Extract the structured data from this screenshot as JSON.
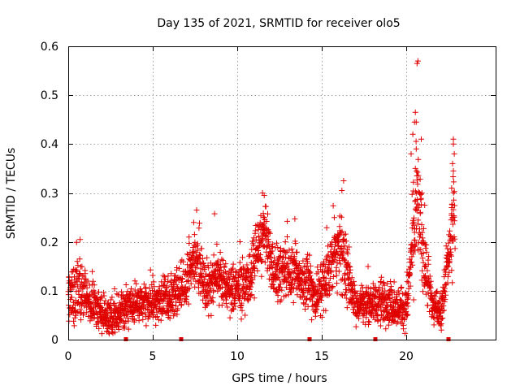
{
  "chart_data": {
    "type": "scatter",
    "title": "Day 135 of 2021, SRMTID for receiver olo5",
    "xlabel": "GPS time / hours",
    "ylabel": "SRMTID / TECUs",
    "xlim": [
      0,
      25.3
    ],
    "ylim": [
      0,
      0.6
    ],
    "xticks": [
      0,
      5,
      10,
      15,
      20
    ],
    "yticks": [
      0,
      0.1,
      0.2,
      0.3,
      0.4,
      0.5,
      0.6
    ],
    "xtick_labels": [
      "0",
      "5",
      "10",
      "15",
      "20"
    ],
    "ytick_labels": [
      "0",
      "0.1",
      "0.2",
      "0.3",
      "0.4",
      "0.5",
      "0.6"
    ],
    "grid": true,
    "marker": "plus",
    "color": "#e00000",
    "profile": [
      {
        "x": 0.0,
        "base": 0.085,
        "spread": 0.04
      },
      {
        "x": 0.6,
        "base": 0.11,
        "spread": 0.05
      },
      {
        "x": 1.2,
        "base": 0.08,
        "spread": 0.035
      },
      {
        "x": 2.0,
        "base": 0.05,
        "spread": 0.03
      },
      {
        "x": 2.5,
        "base": 0.045,
        "spread": 0.025
      },
      {
        "x": 3.2,
        "base": 0.065,
        "spread": 0.03
      },
      {
        "x": 4.0,
        "base": 0.07,
        "spread": 0.025
      },
      {
        "x": 5.0,
        "base": 0.075,
        "spread": 0.03
      },
      {
        "x": 6.0,
        "base": 0.085,
        "spread": 0.035
      },
      {
        "x": 6.8,
        "base": 0.11,
        "spread": 0.04
      },
      {
        "x": 7.6,
        "base": 0.18,
        "spread": 0.05
      },
      {
        "x": 8.2,
        "base": 0.1,
        "spread": 0.04
      },
      {
        "x": 8.8,
        "base": 0.14,
        "spread": 0.04
      },
      {
        "x": 9.5,
        "base": 0.1,
        "spread": 0.035
      },
      {
        "x": 10.5,
        "base": 0.11,
        "spread": 0.04
      },
      {
        "x": 11.0,
        "base": 0.15,
        "spread": 0.05
      },
      {
        "x": 11.6,
        "base": 0.22,
        "spread": 0.05
      },
      {
        "x": 12.2,
        "base": 0.13,
        "spread": 0.04
      },
      {
        "x": 13.0,
        "base": 0.14,
        "spread": 0.045
      },
      {
        "x": 13.6,
        "base": 0.13,
        "spread": 0.04
      },
      {
        "x": 14.2,
        "base": 0.12,
        "spread": 0.05
      },
      {
        "x": 14.6,
        "base": 0.08,
        "spread": 0.03
      },
      {
        "x": 15.2,
        "base": 0.12,
        "spread": 0.045
      },
      {
        "x": 15.8,
        "base": 0.18,
        "spread": 0.05
      },
      {
        "x": 16.3,
        "base": 0.17,
        "spread": 0.06
      },
      {
        "x": 17.0,
        "base": 0.07,
        "spread": 0.03
      },
      {
        "x": 18.0,
        "base": 0.075,
        "spread": 0.03
      },
      {
        "x": 18.8,
        "base": 0.08,
        "spread": 0.035
      },
      {
        "x": 19.4,
        "base": 0.065,
        "spread": 0.03
      },
      {
        "x": 20.0,
        "base": 0.06,
        "spread": 0.03
      },
      {
        "x": 20.4,
        "base": 0.2,
        "spread": 0.07
      },
      {
        "x": 20.7,
        "base": 0.28,
        "spread": 0.09
      },
      {
        "x": 21.1,
        "base": 0.15,
        "spread": 0.05
      },
      {
        "x": 21.6,
        "base": 0.065,
        "spread": 0.03
      },
      {
        "x": 22.1,
        "base": 0.06,
        "spread": 0.025
      },
      {
        "x": 22.5,
        "base": 0.17,
        "spread": 0.04
      },
      {
        "x": 22.8,
        "base": 0.25,
        "spread": 0.09
      }
    ],
    "outliers": [
      {
        "x": 0.7,
        "y": 0.205
      },
      {
        "x": 7.6,
        "y": 0.265
      },
      {
        "x": 11.5,
        "y": 0.3
      },
      {
        "x": 11.6,
        "y": 0.295
      },
      {
        "x": 16.3,
        "y": 0.325
      },
      {
        "x": 16.2,
        "y": 0.305
      },
      {
        "x": 20.3,
        "y": 0.38
      },
      {
        "x": 20.4,
        "y": 0.42
      },
      {
        "x": 20.5,
        "y": 0.445
      },
      {
        "x": 20.55,
        "y": 0.465
      },
      {
        "x": 20.6,
        "y": 0.445
      },
      {
        "x": 20.65,
        "y": 0.565
      },
      {
        "x": 20.7,
        "y": 0.57
      },
      {
        "x": 20.6,
        "y": 0.39
      },
      {
        "x": 20.9,
        "y": 0.41
      },
      {
        "x": 20.55,
        "y": 0.35
      },
      {
        "x": 20.6,
        "y": 0.3
      },
      {
        "x": 21.1,
        "y": 0.275
      },
      {
        "x": 22.8,
        "y": 0.41
      },
      {
        "x": 22.8,
        "y": 0.4
      },
      {
        "x": 22.85,
        "y": 0.38
      },
      {
        "x": 22.75,
        "y": 0.36
      },
      {
        "x": 22.8,
        "y": 0.345
      },
      {
        "x": 22.7,
        "y": 0.31
      },
      {
        "x": 22.7,
        "y": 0.27
      },
      {
        "x": 22.75,
        "y": 0.25
      }
    ],
    "n_points": 2600,
    "x_range_data": [
      0,
      22.9
    ],
    "gap_markers": [
      3.4,
      6.7,
      14.3,
      18.2,
      22.5
    ]
  }
}
